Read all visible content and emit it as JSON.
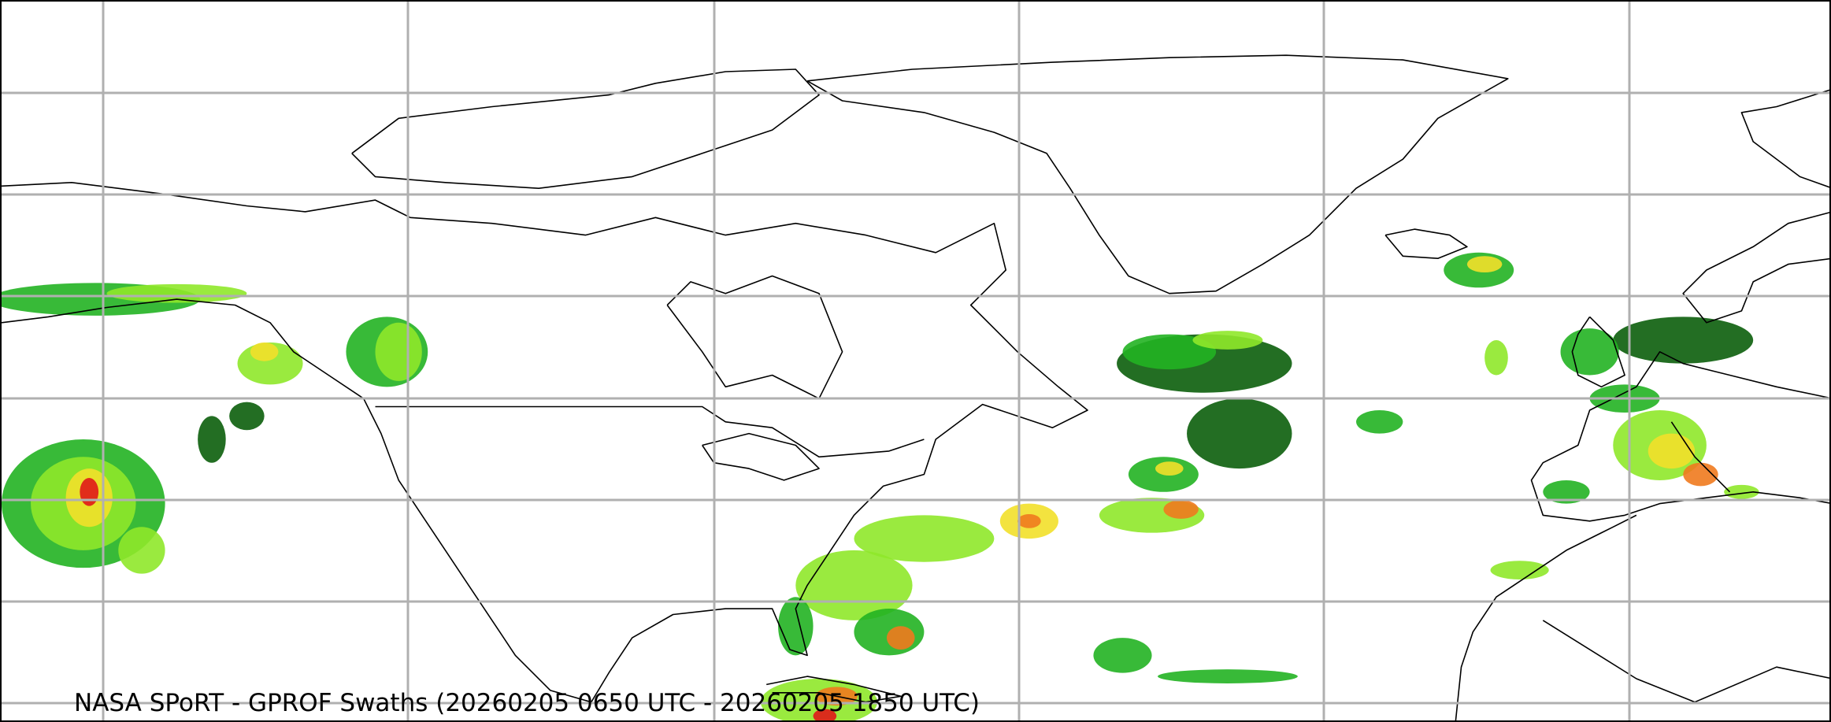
{
  "caption": "NASA SPoRT - GPROF Swaths (20260205 0650 UTC - 20260205 1850 UTC)",
  "map": {
    "projection": "equirectangular",
    "gridlines": true,
    "colors": {
      "grid": "#b0b0b0",
      "coastline": "#000000",
      "precip_light": "#0b5e0b",
      "precip_moderate": "#22b222",
      "precip_heavy": "#8fe82a",
      "precip_very_heavy": "#f2e02a",
      "precip_intense": "#f07a1e",
      "precip_extreme": "#e01818"
    }
  }
}
